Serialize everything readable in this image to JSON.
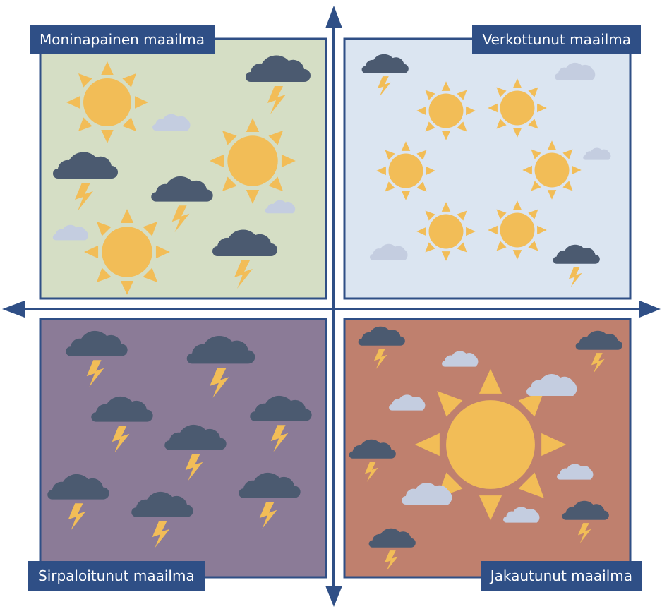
{
  "colors": {
    "axis": "#2f4f86",
    "border": "#2f4f86",
    "sun": "#f2bd57",
    "storm_cloud": "#4b5a70",
    "light_cloud": "#c4cde0",
    "lightning": "#f2bd57"
  },
  "quadrants": [
    {
      "id": "top-left",
      "label": "Moninapainen maailma",
      "background": "#d5dec5",
      "icons": [
        "sun-icon",
        "storm-cloud-icon",
        "light-cloud-icon"
      ]
    },
    {
      "id": "top-right",
      "label": "Verkottunut maailma",
      "background": "#dbe5f1",
      "icons": [
        "sun-icon",
        "storm-cloud-icon",
        "light-cloud-icon"
      ]
    },
    {
      "id": "bottom-left",
      "label": "Sirpaloitunut maailma",
      "background": "#8b7b97",
      "icons": [
        "storm-cloud-icon"
      ]
    },
    {
      "id": "bottom-right",
      "label": "Jakautunut maailma",
      "background": "#bf806e",
      "icons": [
        "sun-icon",
        "storm-cloud-icon",
        "light-cloud-icon"
      ]
    }
  ]
}
